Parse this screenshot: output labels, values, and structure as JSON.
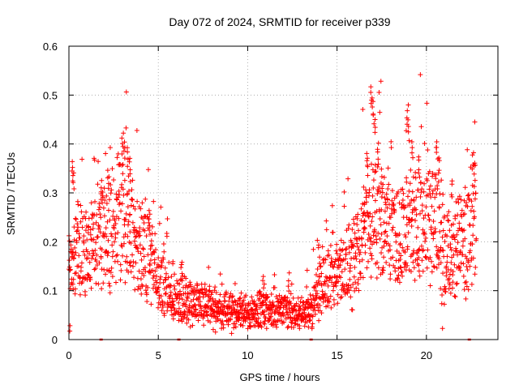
{
  "chart_data": {
    "type": "scatter",
    "title": "Day 072 of 2024, SRMTID for receiver p339",
    "xlabel": "GPS time / hours",
    "ylabel": "SRMTID / TECUs",
    "xlim": [
      0,
      24
    ],
    "ylim": [
      0,
      0.6
    ],
    "xticks": [
      0,
      5,
      10,
      15,
      20
    ],
    "yticks": [
      0,
      0.1,
      0.2,
      0.3,
      0.4,
      0.5,
      0.6
    ],
    "xtick_labels": [
      "0",
      "5",
      "10",
      "15",
      "20"
    ],
    "ytick_labels": [
      "0",
      "0.1",
      "0.2",
      "0.3",
      "0.4",
      "0.5",
      "0.6"
    ],
    "grid": true,
    "marker": "+",
    "color": "#ff0000",
    "hour_range": [
      0,
      22.8
    ],
    "trend_profile": [
      [
        0.0,
        0.16
      ],
      [
        0.5,
        0.19
      ],
      [
        1.0,
        0.17
      ],
      [
        1.5,
        0.19
      ],
      [
        2.0,
        0.21
      ],
      [
        2.5,
        0.22
      ],
      [
        3.0,
        0.25
      ],
      [
        3.5,
        0.22
      ],
      [
        4.0,
        0.18
      ],
      [
        4.5,
        0.17
      ],
      [
        5.0,
        0.12
      ],
      [
        5.5,
        0.1
      ],
      [
        6.0,
        0.08
      ],
      [
        6.5,
        0.08
      ],
      [
        7.0,
        0.075
      ],
      [
        8.0,
        0.065
      ],
      [
        9.0,
        0.06
      ],
      [
        10.0,
        0.055
      ],
      [
        11.0,
        0.06
      ],
      [
        12.0,
        0.06
      ],
      [
        12.5,
        0.055
      ],
      [
        13.0,
        0.05
      ],
      [
        13.5,
        0.065
      ],
      [
        14.0,
        0.1
      ],
      [
        14.5,
        0.13
      ],
      [
        15.0,
        0.13
      ],
      [
        15.5,
        0.14
      ],
      [
        16.0,
        0.17
      ],
      [
        16.5,
        0.22
      ],
      [
        17.0,
        0.27
      ],
      [
        17.5,
        0.25
      ],
      [
        18.0,
        0.21
      ],
      [
        18.5,
        0.2
      ],
      [
        19.0,
        0.24
      ],
      [
        19.5,
        0.22
      ],
      [
        20.0,
        0.24
      ],
      [
        20.5,
        0.23
      ],
      [
        21.0,
        0.18
      ],
      [
        21.5,
        0.17
      ],
      [
        22.0,
        0.21
      ],
      [
        22.8,
        0.23
      ]
    ],
    "spikes": [
      [
        0.2,
        0.37
      ],
      [
        0.25,
        0.35
      ],
      [
        1.8,
        0.33
      ],
      [
        2.2,
        0.35
      ],
      [
        3.0,
        0.42
      ],
      [
        3.1,
        0.41
      ],
      [
        3.3,
        0.4
      ],
      [
        3.4,
        0.38
      ],
      [
        4.5,
        0.26
      ],
      [
        6.3,
        0.16
      ],
      [
        10.9,
        0.13
      ],
      [
        12.3,
        0.14
      ],
      [
        14.0,
        0.2
      ],
      [
        16.5,
        0.26
      ],
      [
        16.9,
        0.52
      ],
      [
        17.0,
        0.5
      ],
      [
        17.1,
        0.46
      ],
      [
        17.3,
        0.41
      ],
      [
        16.7,
        0.39
      ],
      [
        17.5,
        0.35
      ],
      [
        18.9,
        0.47
      ],
      [
        19.0,
        0.45
      ],
      [
        19.2,
        0.41
      ],
      [
        19.6,
        0.38
      ],
      [
        20.6,
        0.41
      ],
      [
        20.7,
        0.38
      ],
      [
        21.4,
        0.33
      ],
      [
        22.6,
        0.39
      ],
      [
        22.7,
        0.37
      ]
    ],
    "data_gaps_hours": [
      1.8,
      6.15,
      13.55,
      22.4
    ]
  }
}
